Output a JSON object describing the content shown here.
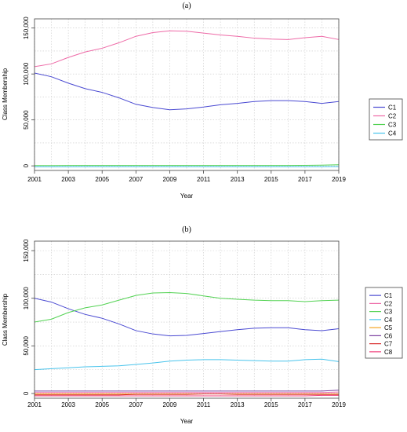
{
  "chart_data": [
    {
      "type": "line",
      "title": "(a)",
      "xlabel": "Year",
      "ylabel": "Class Membership",
      "xlim": [
        2001,
        2019
      ],
      "ylim": [
        -5000,
        160000
      ],
      "x_ticks": [
        "2001",
        "2003",
        "2005",
        "2007",
        "2009",
        "2011",
        "2013",
        "2015",
        "2017",
        "2019"
      ],
      "y_ticks": [
        {
          "value": 0,
          "label": "0"
        },
        {
          "value": 50000,
          "label": "50,000"
        },
        {
          "value": 100000,
          "label": "100,000"
        },
        {
          "value": 150000,
          "label": "150,000"
        }
      ],
      "grid": true,
      "legend_position": "right",
      "x": [
        2001,
        2002,
        2003,
        2004,
        2005,
        2006,
        2007,
        2008,
        2009,
        2010,
        2011,
        2012,
        2013,
        2014,
        2015,
        2016,
        2017,
        2018,
        2019
      ],
      "series": [
        {
          "name": "C1",
          "color": "#4a4ad2",
          "values": [
            101000,
            97000,
            90000,
            84000,
            80000,
            74000,
            67000,
            63500,
            61000,
            62000,
            64000,
            66500,
            68000,
            70000,
            71000,
            71000,
            70000,
            68000,
            70000
          ]
        },
        {
          "name": "C2",
          "color": "#ee6aa7",
          "values": [
            108000,
            111000,
            118000,
            124000,
            128000,
            134000,
            141000,
            145000,
            147000,
            146500,
            144500,
            142500,
            141000,
            139000,
            138000,
            137500,
            139500,
            141000,
            137500
          ]
        },
        {
          "name": "C3",
          "color": "#52d252",
          "values": [
            300,
            300,
            400,
            400,
            400,
            400,
            400,
            500,
            500,
            500,
            500,
            500,
            500,
            500,
            500,
            500,
            600,
            800,
            1200
          ]
        },
        {
          "name": "C4",
          "color": "#49c4ec",
          "values": [
            -1000,
            -1000,
            -1000,
            -900,
            -900,
            -900,
            -900,
            -900,
            -900,
            -900,
            -900,
            -900,
            -900,
            -900,
            -900,
            -900,
            -900,
            -900,
            -800
          ]
        }
      ]
    },
    {
      "type": "line",
      "title": "(b)",
      "xlabel": "Year",
      "ylabel": "Class Membership",
      "xlim": [
        2001,
        2019
      ],
      "ylim": [
        -5000,
        160000
      ],
      "x_ticks": [
        "2001",
        "2003",
        "2005",
        "2007",
        "2009",
        "2011",
        "2013",
        "2015",
        "2017",
        "2019"
      ],
      "y_ticks": [
        {
          "value": 0,
          "label": "0"
        },
        {
          "value": 50000,
          "label": "50,000"
        },
        {
          "value": 100000,
          "label": "100,000"
        },
        {
          "value": 150000,
          "label": "150,000"
        }
      ],
      "grid": true,
      "legend_position": "right",
      "x": [
        2001,
        2002,
        2003,
        2004,
        2005,
        2006,
        2007,
        2008,
        2009,
        2010,
        2011,
        2012,
        2013,
        2014,
        2015,
        2016,
        2017,
        2018,
        2019
      ],
      "series": [
        {
          "name": "C1",
          "color": "#4a4ad2",
          "values": [
            100000,
            96000,
            89000,
            83000,
            79000,
            73000,
            66000,
            62500,
            60500,
            61000,
            63000,
            65000,
            67000,
            68500,
            69000,
            69000,
            67000,
            66000,
            68000
          ]
        },
        {
          "name": "C2",
          "color": "#ee6aa7",
          "values": [
            1000,
            1000,
            1000,
            1000,
            1000,
            1000,
            1000,
            1000,
            1000,
            1000,
            1000,
            1000,
            1000,
            1000,
            1000,
            1000,
            1000,
            1000,
            1500
          ]
        },
        {
          "name": "C3",
          "color": "#52d252",
          "values": [
            75000,
            78000,
            85000,
            90000,
            93000,
            98000,
            103000,
            105500,
            106000,
            105000,
            102500,
            100000,
            99000,
            98000,
            97500,
            97500,
            96500,
            97500,
            98000
          ]
        },
        {
          "name": "C4",
          "color": "#49c4ec",
          "values": [
            25000,
            26000,
            27000,
            28000,
            28500,
            29000,
            30500,
            32000,
            34000,
            35000,
            35500,
            35500,
            35000,
            34500,
            34000,
            34000,
            35500,
            36000,
            33500
          ]
        },
        {
          "name": "C5",
          "color": "#f5a623",
          "values": [
            -500,
            -500,
            -500,
            -500,
            -500,
            -500,
            -500,
            -500,
            -500,
            -500,
            -500,
            -500,
            -500,
            -500,
            -500,
            -500,
            -500,
            -500,
            -500
          ]
        },
        {
          "name": "C6",
          "color": "#7b3fa0",
          "values": [
            2500,
            2500,
            2500,
            2500,
            2500,
            2500,
            2500,
            2500,
            2500,
            2500,
            2500,
            2500,
            2500,
            2500,
            2500,
            2500,
            2500,
            2500,
            3500
          ]
        },
        {
          "name": "C7",
          "color": "#d92b2b",
          "values": [
            -1500,
            -1500,
            -1500,
            -1500,
            -1500,
            -1500,
            -1000,
            -1000,
            -1000,
            -1000,
            -500,
            -500,
            -1000,
            -1000,
            -1000,
            -1000,
            -1000,
            -1000,
            -1000
          ]
        },
        {
          "name": "C8",
          "color": "#f0427e",
          "values": [
            -2500,
            -2500,
            -2500,
            -2500,
            -2500,
            -2500,
            -2500,
            -2500,
            -2500,
            -2500,
            -2500,
            -2500,
            -2500,
            -2500,
            -2500,
            -2500,
            -2500,
            -2000,
            -2000
          ]
        }
      ]
    }
  ]
}
